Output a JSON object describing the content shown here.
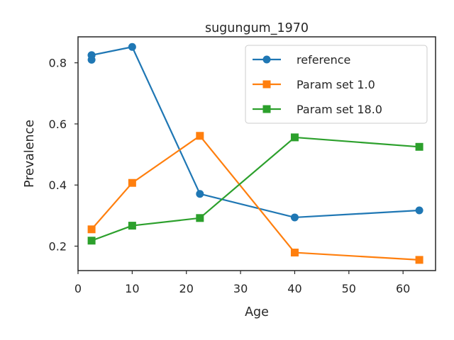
{
  "chart_data": {
    "type": "line",
    "title": "sugungum_1970",
    "xlabel": "Age",
    "ylabel": "Prevalence",
    "xlim": [
      0,
      66
    ],
    "ylim": [
      0.12,
      0.885
    ],
    "xticks": [
      0,
      10,
      20,
      30,
      40,
      50,
      60
    ],
    "yticks": [
      0.2,
      0.4,
      0.6,
      0.8
    ],
    "xtick_labels": [
      "0",
      "10",
      "20",
      "30",
      "40",
      "50",
      "60"
    ],
    "ytick_labels": [
      "0.2",
      "0.4",
      "0.6",
      "0.8"
    ],
    "grid": false,
    "legend_position": "top-right",
    "series": [
      {
        "name": "reference",
        "color": "#1f77b4",
        "marker": "circle",
        "points": [
          [
            2.5,
            0.825
          ],
          [
            2.5,
            0.81
          ],
          [
            2.5,
            0.825
          ],
          [
            10,
            0.852
          ],
          [
            22.5,
            0.371
          ],
          [
            40,
            0.294
          ],
          [
            63,
            0.317
          ]
        ]
      },
      {
        "name": "Param set 1.0",
        "color": "#ff7f0e",
        "marker": "square",
        "points": [
          [
            2.5,
            0.255
          ],
          [
            10,
            0.407
          ],
          [
            22.5,
            0.561
          ],
          [
            40,
            0.179
          ],
          [
            63,
            0.155
          ]
        ]
      },
      {
        "name": "Param set 18.0",
        "color": "#2ca02c",
        "marker": "square",
        "points": [
          [
            2.5,
            0.218
          ],
          [
            10,
            0.267
          ],
          [
            22.5,
            0.292
          ],
          [
            40,
            0.556
          ],
          [
            63,
            0.525
          ]
        ]
      }
    ]
  }
}
